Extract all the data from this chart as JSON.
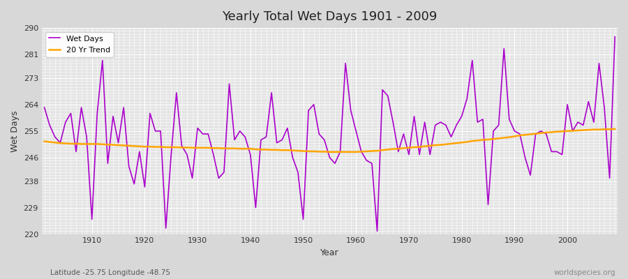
{
  "title": "Yearly Total Wet Days 1901 - 2009",
  "xlabel": "Year",
  "ylabel": "Wet Days",
  "ylim": [
    220,
    290
  ],
  "yticks": [
    220,
    229,
    238,
    246,
    255,
    264,
    273,
    281,
    290
  ],
  "bg_color": "#e0e0e0",
  "plot_bg_color": "#e8e8e8",
  "line_color": "#aa00cc",
  "trend_color": "#ffa500",
  "footnote_left": "Latitude -25.75 Longitude -48.75",
  "footnote_right": "worldspecies.org",
  "years": [
    1901,
    1902,
    1903,
    1904,
    1905,
    1906,
    1907,
    1908,
    1909,
    1910,
    1911,
    1912,
    1913,
    1914,
    1915,
    1916,
    1917,
    1918,
    1919,
    1920,
    1921,
    1922,
    1923,
    1924,
    1925,
    1926,
    1927,
    1928,
    1929,
    1930,
    1931,
    1932,
    1933,
    1934,
    1935,
    1936,
    1937,
    1938,
    1939,
    1940,
    1941,
    1942,
    1943,
    1944,
    1945,
    1946,
    1947,
    1948,
    1949,
    1950,
    1951,
    1952,
    1953,
    1954,
    1955,
    1956,
    1957,
    1958,
    1959,
    1960,
    1961,
    1962,
    1963,
    1964,
    1965,
    1966,
    1967,
    1968,
    1969,
    1970,
    1971,
    1972,
    1973,
    1974,
    1975,
    1976,
    1977,
    1978,
    1979,
    1980,
    1981,
    1982,
    1983,
    1984,
    1985,
    1986,
    1987,
    1988,
    1989,
    1990,
    1991,
    1992,
    1993,
    1994,
    1995,
    1996,
    1997,
    1998,
    1999,
    2000,
    2001,
    2002,
    2003,
    2004,
    2005,
    2006,
    2007,
    2008,
    2009
  ],
  "wet_days": [
    263,
    257,
    253,
    251,
    258,
    261,
    248,
    263,
    253,
    225,
    261,
    279,
    244,
    260,
    251,
    263,
    243,
    237,
    248,
    236,
    261,
    255,
    255,
    222,
    247,
    268,
    250,
    247,
    239,
    256,
    254,
    254,
    247,
    239,
    241,
    271,
    252,
    255,
    253,
    247,
    229,
    252,
    253,
    268,
    251,
    252,
    256,
    246,
    241,
    225,
    262,
    264,
    254,
    252,
    246,
    244,
    248,
    278,
    262,
    255,
    248,
    245,
    244,
    221,
    269,
    267,
    258,
    248,
    254,
    247,
    260,
    247,
    258,
    247,
    257,
    258,
    257,
    253,
    257,
    260,
    266,
    279,
    258,
    259,
    230,
    255,
    257,
    283,
    259,
    255,
    254,
    246,
    240,
    254,
    255,
    254,
    248,
    248,
    247,
    264,
    255,
    258,
    257,
    265,
    258,
    278,
    263,
    239,
    287
  ],
  "trend": [
    251.5,
    251.3,
    251.1,
    250.9,
    250.8,
    250.7,
    250.7,
    250.6,
    250.6,
    250.6,
    250.6,
    250.5,
    250.4,
    250.3,
    250.2,
    250.1,
    250.0,
    249.9,
    249.8,
    249.7,
    249.7,
    249.6,
    249.6,
    249.5,
    249.5,
    249.5,
    249.4,
    249.4,
    249.3,
    249.3,
    249.3,
    249.3,
    249.2,
    249.2,
    249.1,
    249.1,
    249.1,
    249.0,
    249.0,
    249.0,
    248.8,
    248.7,
    248.7,
    248.6,
    248.6,
    248.5,
    248.5,
    248.4,
    248.3,
    248.2,
    248.1,
    248.1,
    248.0,
    248.0,
    247.9,
    247.9,
    247.9,
    247.9,
    247.9,
    247.9,
    248.0,
    248.1,
    248.2,
    248.3,
    248.5,
    248.7,
    248.9,
    249.0,
    249.2,
    249.3,
    249.5,
    249.6,
    249.8,
    250.0,
    250.2,
    250.3,
    250.5,
    250.7,
    250.9,
    251.1,
    251.3,
    251.6,
    251.8,
    252.0,
    252.1,
    252.3,
    252.5,
    252.7,
    252.9,
    253.2,
    253.5,
    253.7,
    253.9,
    254.1,
    254.3,
    254.5,
    254.6,
    254.8,
    254.9,
    255.0,
    255.1,
    255.2,
    255.3,
    255.4,
    255.5,
    255.5,
    255.6,
    255.6,
    255.7
  ]
}
